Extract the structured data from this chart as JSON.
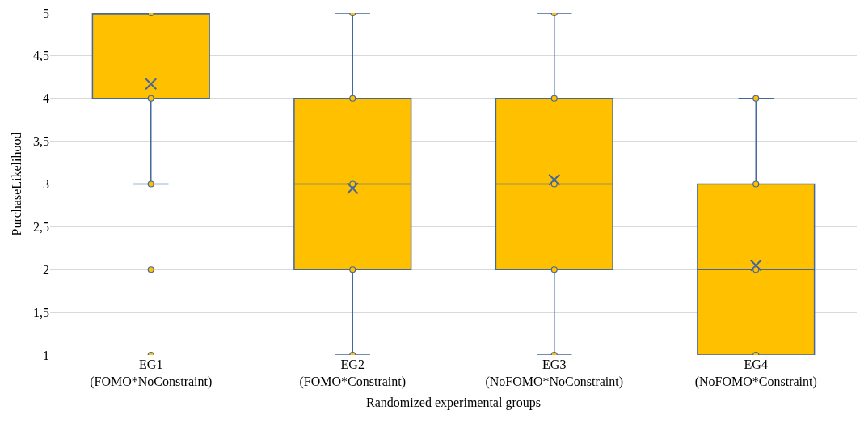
{
  "chart_data": {
    "type": "box",
    "xlabel": "Randomized experimental groups",
    "ylabel": "PurchaseLikelihood",
    "categories": [
      "EG1\n(FOMO*NoConstraint)",
      "EG2\n(FOMO*Constraint)",
      "EG3\n(NoFOMO*NoConstraint)",
      "EG4\n(NoFOMO*Constraint)"
    ],
    "series": [
      {
        "color": "#ffc000",
        "boxes": [
          {
            "low": 3,
            "q1": 4,
            "median": 5,
            "q3": 5,
            "high": 5,
            "mean": 4.17,
            "outliers": [
              2,
              1
            ]
          },
          {
            "low": 1,
            "q1": 2,
            "median": 3,
            "q3": 4,
            "high": 5,
            "mean": 2.95
          },
          {
            "low": 1,
            "q1": 2,
            "median": 3,
            "q3": 4,
            "high": 5,
            "mean": 3.05
          },
          {
            "low": 1,
            "q1": 1,
            "median": 2,
            "q3": 3,
            "high": 4,
            "mean": 2.05
          }
        ]
      },
      {
        "type": "scatter",
        "color": "#ffc000",
        "marker": "circle",
        "x": [
          "EG1\n(FOMO*NoConstraint)",
          "EG1\n(FOMO*NoConstraint)",
          "EG1\n(FOMO*NoConstraint)",
          "EG2\n(FOMO*Constraint)",
          "EG2\n(FOMO*Constraint)",
          "EG2\n(FOMO*Constraint)",
          "EG2\n(FOMO*Constraint)",
          "EG2\n(FOMO*Constraint)",
          "EG3\n(NoFOMO*NoConstraint)",
          "EG3\n(NoFOMO*NoConstraint)",
          "EG3\n(NoFOMO*NoConstraint)",
          "EG3\n(NoFOMO*NoConstraint)",
          "EG3\n(NoFOMO*NoConstraint)",
          "EG4\n(NoFOMO*Constraint)",
          "EG4\n(NoFOMO*Constraint)",
          "EG4\n(NoFOMO*Constraint)",
          "EG4\n(NoFOMO*Constraint)"
        ],
        "values": [
          5,
          4,
          3,
          5,
          4,
          3,
          2,
          1,
          5,
          4,
          3,
          2,
          1,
          4,
          3,
          2,
          1
        ]
      }
    ],
    "ylim": [
      1,
      5
    ],
    "yticks": [
      1,
      {
        "value": 1.5,
        "label": "1,5"
      },
      2,
      {
        "value": 2.5,
        "label": "2,5"
      },
      3,
      {
        "value": 3.5,
        "label": "3,5"
      },
      4,
      {
        "value": 4.5,
        "label": "4,5"
      },
      5
    ],
    "grid": "y"
  }
}
